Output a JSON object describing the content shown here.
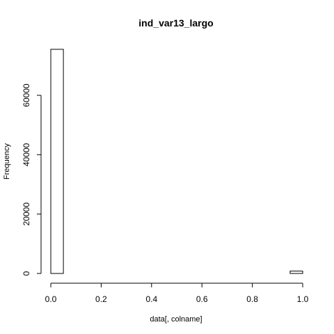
{
  "chart_data": {
    "type": "bar",
    "title": "ind_var13_largo",
    "xlabel": "data[, colname]",
    "ylabel": "Frequency",
    "bins": [
      {
        "from": 0.0,
        "to": 0.05,
        "count": 75500
      },
      {
        "from": 0.05,
        "to": 0.1,
        "count": 0
      },
      {
        "from": 0.1,
        "to": 0.15,
        "count": 0
      },
      {
        "from": 0.15,
        "to": 0.2,
        "count": 0
      },
      {
        "from": 0.2,
        "to": 0.25,
        "count": 0
      },
      {
        "from": 0.25,
        "to": 0.3,
        "count": 0
      },
      {
        "from": 0.3,
        "to": 0.35,
        "count": 0
      },
      {
        "from": 0.35,
        "to": 0.4,
        "count": 0
      },
      {
        "from": 0.4,
        "to": 0.45,
        "count": 0
      },
      {
        "from": 0.45,
        "to": 0.5,
        "count": 0
      },
      {
        "from": 0.5,
        "to": 0.55,
        "count": 0
      },
      {
        "from": 0.55,
        "to": 0.6,
        "count": 0
      },
      {
        "from": 0.6,
        "to": 0.65,
        "count": 0
      },
      {
        "from": 0.65,
        "to": 0.7,
        "count": 0
      },
      {
        "from": 0.7,
        "to": 0.75,
        "count": 0
      },
      {
        "from": 0.75,
        "to": 0.8,
        "count": 0
      },
      {
        "from": 0.8,
        "to": 0.85,
        "count": 0
      },
      {
        "from": 0.85,
        "to": 0.9,
        "count": 0
      },
      {
        "from": 0.9,
        "to": 0.95,
        "count": 0
      },
      {
        "from": 0.95,
        "to": 1.0,
        "count": 800
      }
    ],
    "xlim": [
      0,
      1
    ],
    "ylim": [
      0,
      75500
    ],
    "xticks": [
      "0.0",
      "0.2",
      "0.4",
      "0.6",
      "0.8",
      "1.0"
    ],
    "xtick_values": [
      0,
      0.2,
      0.4,
      0.6,
      0.8,
      1.0
    ],
    "yticks": [
      "0",
      "20000",
      "40000",
      "60000"
    ],
    "ytick_values": [
      0,
      20000,
      40000,
      60000
    ],
    "grid": false,
    "bar_fill": "#ffffff",
    "bar_stroke": "#000000"
  }
}
